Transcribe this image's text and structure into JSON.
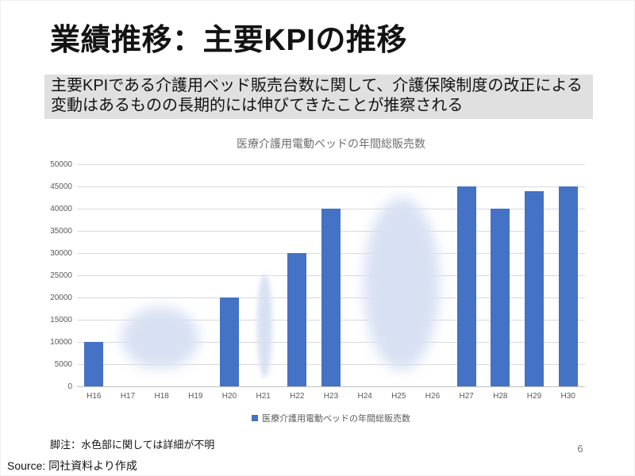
{
  "slide": {
    "title": "業績推移：主要KPIの推移",
    "lede_line1": "主要KPIである介護用ベッド販売台数に関して、介護保険制度の改正による",
    "lede_line2": "変動はあるものの長期的には伸びてきたことが推察される",
    "footnote": "脚注：水色部に関しては詳細が不明",
    "source": "Source: 同社資料より作成",
    "page_number": "6"
  },
  "chart_data": {
    "type": "bar",
    "title": "医療介護用電動ベッドの年間総販売数",
    "categories": [
      "H16",
      "H17",
      "H18",
      "H19",
      "H20",
      "H21",
      "H22",
      "H23",
      "H24",
      "H25",
      "H26",
      "H27",
      "H28",
      "H29",
      "H30"
    ],
    "values": [
      10000,
      null,
      null,
      null,
      20000,
      null,
      30000,
      40000,
      null,
      null,
      null,
      45000,
      40000,
      44000,
      45000
    ],
    "legend": {
      "label": "医療介護用電動ベッドの年間総販売数",
      "marker": "square"
    },
    "legend_position": "bottom",
    "ylim": [
      0,
      50000
    ],
    "yticks": [
      0,
      5000,
      10000,
      15000,
      20000,
      25000,
      30000,
      35000,
      40000,
      45000,
      50000
    ],
    "grid": true,
    "bar_color": "#4472c4",
    "axis_text_color": "#595959",
    "redaction_blobs": {
      "color": "#d8e1f3",
      "regions": [
        {
          "center_category": 1.96,
          "center_value": 10900,
          "radius_categories": 1.15,
          "radius_value": 7000
        },
        {
          "center_category": 5.04,
          "center_value": 13700,
          "radius_categories": 0.22,
          "radius_value": 11700
        },
        {
          "center_category": 9.09,
          "center_value": 23000,
          "radius_categories": 1.13,
          "radius_value": 19500
        }
      ]
    }
  }
}
